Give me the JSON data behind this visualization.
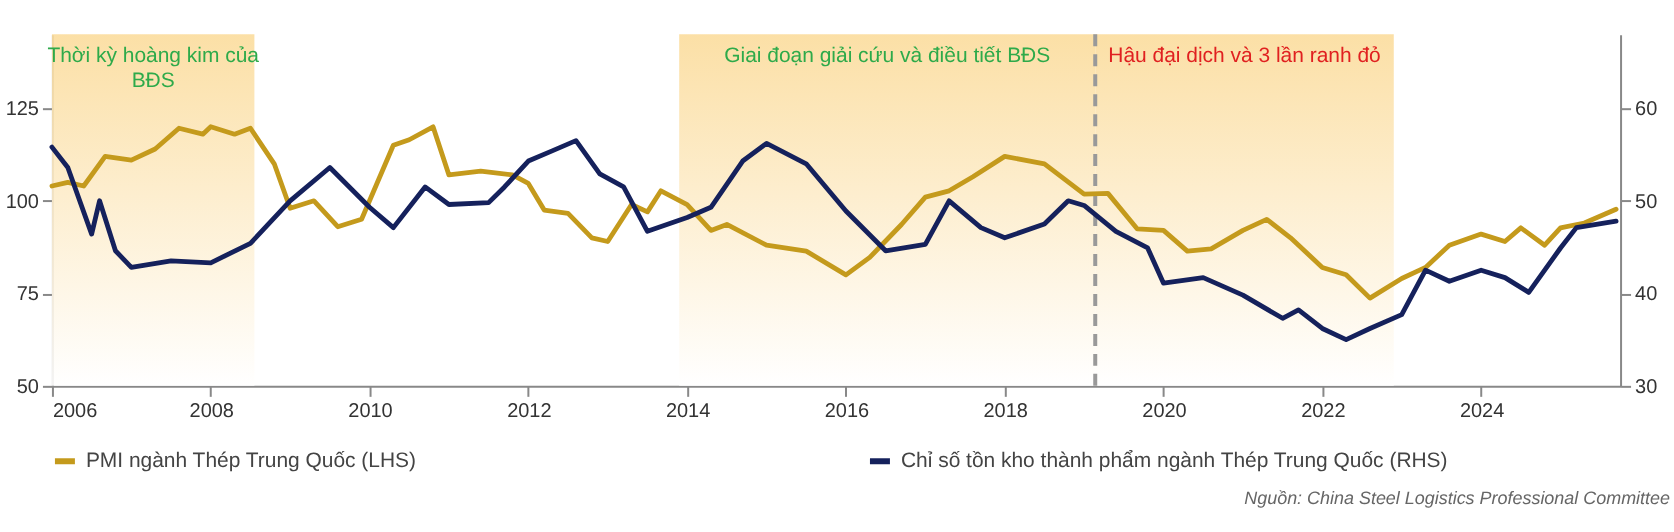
{
  "chart_data": {
    "type": "line",
    "xlim": [
      2006,
      2025.75
    ],
    "xticks": [
      2006,
      2008,
      2010,
      2012,
      2014,
      2016,
      2018,
      2020,
      2022,
      2024
    ],
    "ylim": [
      50,
      145
    ],
    "yticks": [
      50,
      75,
      100,
      125
    ],
    "y2lim": [
      30,
      68
    ],
    "y2ticks": [
      30,
      40,
      50,
      60
    ],
    "grid": false,
    "legend": "bottom",
    "marker": "none",
    "line_style": "solid",
    "series": [
      {
        "name": "PMI ngành Thép Trung Quốc (LHS)",
        "color": "#c49a1c",
        "axis": "y",
        "x": [
          2006.0,
          2006.2,
          2006.4,
          2006.67,
          2007.0,
          2007.3,
          2007.6,
          2007.9,
          2008.0,
          2008.3,
          2008.5,
          2008.8,
          2009.0,
          2009.3,
          2009.6,
          2009.9,
          2010.1,
          2010.3,
          2010.5,
          2010.8,
          2011.0,
          2011.4,
          2011.8,
          2012.0,
          2012.2,
          2012.5,
          2012.8,
          2013.0,
          2013.3,
          2013.5,
          2013.67,
          2014.0,
          2014.3,
          2014.5,
          2015.0,
          2015.5,
          2016.0,
          2016.3,
          2016.7,
          2017.0,
          2017.3,
          2017.6,
          2018.0,
          2018.5,
          2019.0,
          2019.3,
          2019.67,
          2020.0,
          2020.3,
          2020.6,
          2021.0,
          2021.3,
          2021.6,
          2022.0,
          2022.3,
          2022.6,
          2023.0,
          2023.3,
          2023.6,
          2024.0,
          2024.3,
          2024.5,
          2024.8,
          2025.0,
          2025.3,
          2025.7
        ],
        "values": [
          104,
          105,
          104,
          112,
          111,
          114,
          119.6,
          118,
          120,
          118,
          119.6,
          110,
          98,
          100,
          93,
          95,
          105,
          115,
          116.5,
          120,
          107,
          108,
          107,
          104.7,
          97.5,
          96.6,
          90,
          89,
          99,
          97,
          102.7,
          99,
          92,
          93.6,
          88,
          86.4,
          80,
          84.7,
          93.6,
          101,
          102.7,
          106.5,
          112,
          110,
          101.8,
          102,
          92.4,
          92,
          86.4,
          87,
          92,
          95,
          90,
          82,
          80,
          73.7,
          79,
          82,
          88,
          91,
          89,
          92.7,
          88,
          92.7,
          94,
          97.7
        ]
      },
      {
        "name": "Chỉ số tồn kho thành phẩm ngành Thép Trung Quốc (RHS)",
        "color": "#15215c",
        "axis": "y2",
        "x": [
          2006.0,
          2006.2,
          2006.5,
          2006.6,
          2006.8,
          2007.0,
          2007.5,
          2008.0,
          2008.5,
          2009.0,
          2009.5,
          2010.0,
          2010.3,
          2010.7,
          2011.0,
          2011.5,
          2011.7,
          2012.0,
          2012.3,
          2012.6,
          2012.9,
          2013.2,
          2013.5,
          2014.0,
          2014.3,
          2014.7,
          2015.0,
          2015.5,
          2016.0,
          2016.5,
          2017.0,
          2017.3,
          2017.7,
          2018.0,
          2018.5,
          2018.8,
          2019.0,
          2019.4,
          2019.8,
          2020.0,
          2020.5,
          2021.0,
          2021.5,
          2021.7,
          2022.0,
          2022.3,
          2022.6,
          2023.0,
          2023.3,
          2023.6,
          2024.0,
          2024.3,
          2024.6,
          2025.0,
          2025.2,
          2025.7
        ],
        "values": [
          55.8,
          53.6,
          46.4,
          50,
          44.6,
          42.8,
          43.5,
          43.3,
          45.4,
          50,
          53.6,
          49.3,
          47.1,
          51.5,
          49.6,
          49.8,
          51.5,
          54.3,
          55.4,
          56.5,
          52.9,
          51.5,
          46.7,
          48.2,
          49.3,
          54.3,
          56.2,
          54,
          48.9,
          44.6,
          45.3,
          50,
          47.1,
          46,
          47.5,
          50,
          49.5,
          46.7,
          44.9,
          41.1,
          41.7,
          39.8,
          37.3,
          38.2,
          36.2,
          35,
          36.2,
          37.7,
          42.5,
          41.3,
          42.5,
          41.7,
          40.1,
          44.9,
          47.1,
          47.8
        ]
      }
    ],
    "bands": [
      {
        "axis": "x",
        "from": 2006.0,
        "to": 2008.55,
        "label": "Thời kỳ hoàng kim của\nBĐS",
        "color": "#fbdc9c"
      },
      {
        "axis": "x",
        "from": 2013.9,
        "to": 2019.14,
        "label": "Giai đoạn giải cứu và điều tiết BĐS",
        "color": "#fbdc9c"
      },
      {
        "axis": "x",
        "from": 2019.14,
        "to": 2022.9,
        "label": "Hậu đại dịch và 3 lần ranh đỏ",
        "color": "#fbdc9c"
      }
    ],
    "ref_lines": [
      {
        "axis": "x",
        "value": 2019.14,
        "label": null,
        "color": "#999999",
        "line_style": "dashed"
      }
    ],
    "annotations": [
      "Nguồn: China Steel Logistics Professional Committee"
    ]
  }
}
